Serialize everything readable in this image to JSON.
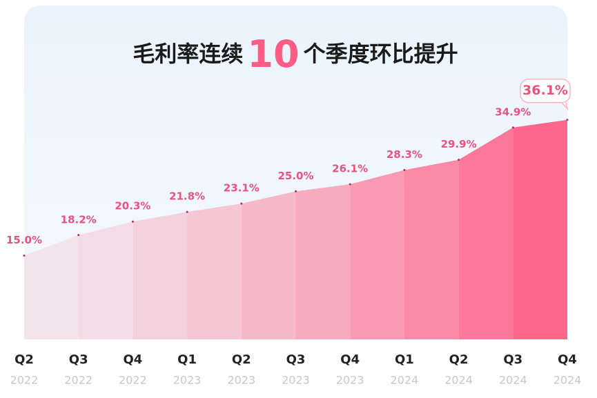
{
  "chart_data": {
    "type": "area",
    "title_parts": [
      "毛利率连续",
      "10",
      "个季度环比提升"
    ],
    "categories": [
      [
        "Q2",
        "2022"
      ],
      [
        "Q3",
        "2022"
      ],
      [
        "Q4",
        "2022"
      ],
      [
        "Q1",
        "2023"
      ],
      [
        "Q2",
        "2023"
      ],
      [
        "Q3",
        "2023"
      ],
      [
        "Q4",
        "2023"
      ],
      [
        "Q1",
        "2024"
      ],
      [
        "Q2",
        "2024"
      ],
      [
        "Q3",
        "2024"
      ],
      [
        "Q4",
        "2024"
      ]
    ],
    "values": [
      15.0,
      18.2,
      20.3,
      21.8,
      23.1,
      25.0,
      26.1,
      28.3,
      29.9,
      34.9,
      36.1
    ],
    "value_labels": [
      "15.0%",
      "18.2%",
      "20.3%",
      "21.8%",
      "23.1%",
      "25.0%",
      "26.1%",
      "28.3%",
      "29.9%",
      "34.9%",
      "36.1%"
    ],
    "ylim": [
      2,
      38
    ],
    "color_start": "#f2e6ec",
    "color_end": "#ff5c85",
    "label_color": "#e8527f",
    "highlight_last": true
  }
}
